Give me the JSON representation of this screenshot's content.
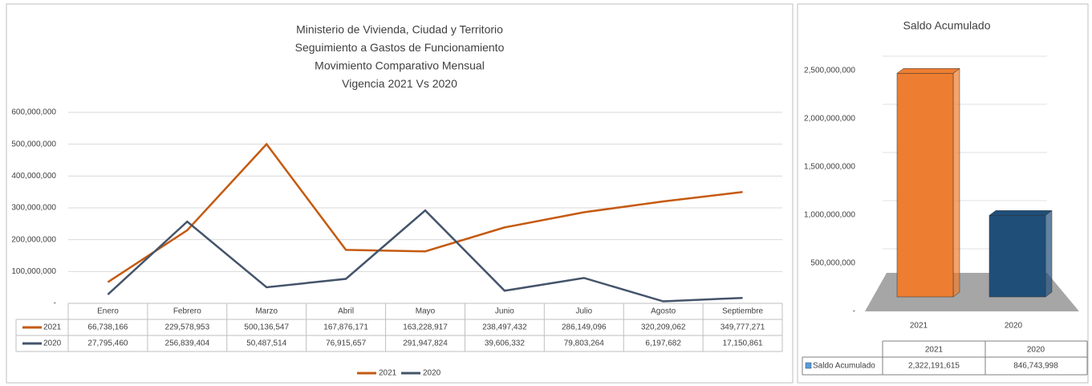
{
  "chart_data": [
    {
      "type": "line",
      "title": [
        "Ministerio de Vivienda, Ciudad y Territorio",
        "Seguimiento a Gastos de Funcionamiento",
        "Movimiento Comparativo Mensual",
        "Vigencia 2021 Vs 2020"
      ],
      "categories": [
        "Enero",
        "Febrero",
        "Marzo",
        "Abril",
        "Mayo",
        "Junio",
        "Julio",
        "Agosto",
        "Septiembre"
      ],
      "series": [
        {
          "name": "2021",
          "color": "#c55a11",
          "values": [
            66738166,
            229578953,
            500136547,
            167876171,
            163228917,
            238497432,
            286149096,
            320209062,
            349777271
          ],
          "value_labels": [
            "66,738,166",
            "229,578,953",
            "500,136,547",
            "167,876,171",
            "163,228,917",
            "238,497,432",
            "286,149,096",
            "320,209,062",
            "349,777,271"
          ]
        },
        {
          "name": "2020",
          "color": "#44546a",
          "values": [
            27795460,
            256839404,
            50487514,
            76915657,
            291947824,
            39606332,
            79803264,
            6197682,
            17150861
          ],
          "value_labels": [
            "27,795,460",
            "256,839,404",
            "50,487,514",
            "76,915,657",
            "291,947,824",
            "39,606,332",
            "79,803,264",
            "6,197,682",
            "17,150,861"
          ]
        }
      ],
      "ylim": [
        0,
        600000000
      ],
      "yticks": [
        {
          "value": 0,
          "label": "-"
        },
        {
          "value": 100000000,
          "label": "100,000,000"
        },
        {
          "value": 200000000,
          "label": "200,000,000"
        },
        {
          "value": 300000000,
          "label": "300,000,000"
        },
        {
          "value": 400000000,
          "label": "400,000,000"
        },
        {
          "value": 500000000,
          "label": "500,000,000"
        },
        {
          "value": 600000000,
          "label": "600,000,000"
        }
      ],
      "grid": true,
      "legend": "bottom"
    },
    {
      "type": "bar3d",
      "title": "Saldo Acumulado",
      "categories": [
        "2021",
        "2020"
      ],
      "series": [
        {
          "name": "Saldo Acumulado",
          "color": "#5b9bd5",
          "colors": [
            "#ed7d31",
            "#1f4e79"
          ],
          "values": [
            2322191615,
            846743998
          ],
          "value_labels": [
            "2,322,191,615",
            "846,743,998"
          ]
        }
      ],
      "ylim": [
        0,
        2500000000
      ],
      "yticks": [
        {
          "value": 0,
          "label": "-"
        },
        {
          "value": 500000000,
          "label": "500,000,000"
        },
        {
          "value": 1000000000,
          "label": "1,000,000,000"
        },
        {
          "value": 1500000000,
          "label": "1,500,000,000"
        },
        {
          "value": 2000000000,
          "label": "2,000,000,000"
        },
        {
          "value": 2500000000,
          "label": "2,500,000,000"
        }
      ],
      "grid": true
    }
  ]
}
